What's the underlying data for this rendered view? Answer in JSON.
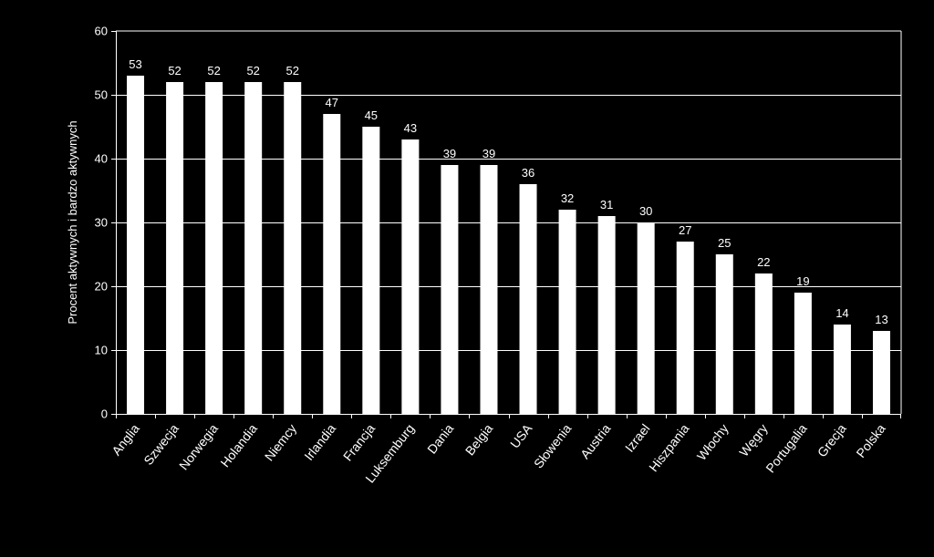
{
  "chart_data": {
    "type": "bar",
    "title": "",
    "xlabel": "",
    "ylabel": "Procent aktywnych i bardzo aktywnych",
    "ylim": [
      0,
      60
    ],
    "yticks": [
      0,
      10,
      20,
      30,
      40,
      50,
      60
    ],
    "grid": true,
    "categories": [
      "Anglia",
      "Szwecja",
      "Norwegia",
      "Holandia",
      "Niemcy",
      "Irlandia",
      "Francja",
      "Luksemburg",
      "Dania",
      "Belgia",
      "USA",
      "Słowenia",
      "Austria",
      "Izrael",
      "Hiszpania",
      "Włochy",
      "Węgry",
      "Portugalia",
      "Grecja",
      "Polska"
    ],
    "values": [
      53,
      52,
      52,
      52,
      52,
      47,
      45,
      43,
      39,
      39,
      36,
      32,
      31,
      30,
      27,
      25,
      22,
      19,
      14,
      13
    ],
    "colors": {
      "background": "#000000",
      "bar": "#ffffff",
      "axis": "#ffffff",
      "grid": "#ffffff",
      "text": "#ffffff"
    }
  }
}
